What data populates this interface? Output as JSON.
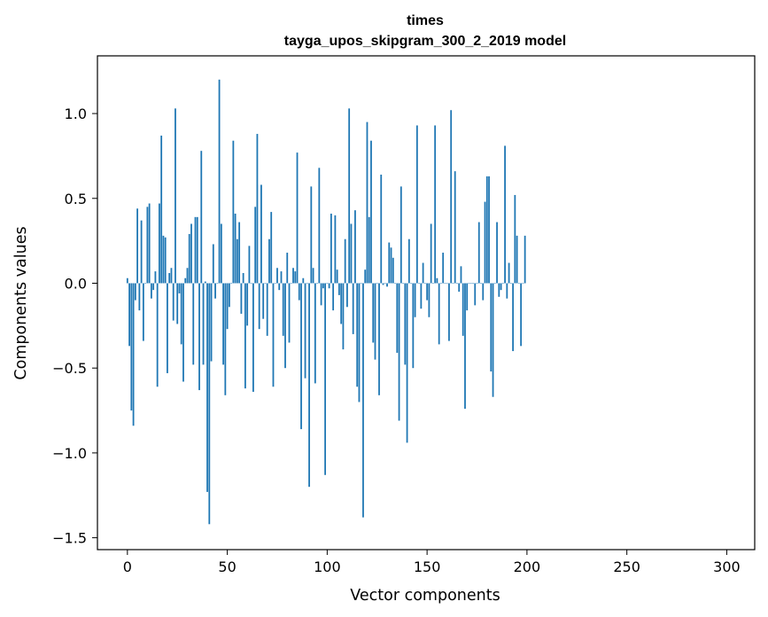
{
  "chart_data": {
    "type": "bar",
    "title": "times",
    "subtitle": "tayga_upos_skipgram_300_2_2019 model",
    "xlabel": "Vector components",
    "ylabel": "Components values",
    "xlim": [
      -15,
      314
    ],
    "ylim": [
      -1.57,
      1.34
    ],
    "xticks": [
      0,
      50,
      100,
      150,
      200,
      250,
      300
    ],
    "xtick_labels": [
      "0",
      "50",
      "100",
      "150",
      "200",
      "250",
      "300"
    ],
    "yticks": [
      -1.5,
      -1.0,
      -0.5,
      0.0,
      0.5,
      1.0
    ],
    "ytick_labels": [
      "−1.5",
      "−1.0",
      "−0.5",
      "0.0",
      "0.5",
      "1.0"
    ],
    "bar_color": "#1f77b4",
    "grid": false,
    "series": [
      {
        "values": [
          0.03,
          -0.37,
          -0.75,
          -0.84,
          -0.1,
          0.44,
          -0.16,
          0.37,
          -0.34,
          0.0,
          0.45,
          0.47,
          -0.09,
          -0.04,
          0.07,
          -0.61,
          0.47,
          0.87,
          0.28,
          0.27,
          -0.53,
          0.06,
          0.09,
          -0.22,
          1.03,
          -0.24,
          -0.06,
          -0.36,
          -0.58,
          0.03,
          0.09,
          0.29,
          0.35,
          -0.48,
          0.39,
          0.39,
          -0.63,
          0.78,
          -0.48,
          0.01,
          -1.23,
          -1.42,
          -0.46,
          0.23,
          -0.09,
          0.0,
          1.2,
          0.35,
          -0.48,
          -0.66,
          -0.27,
          -0.14,
          0.0,
          0.84,
          0.41,
          0.26,
          0.36,
          -0.18,
          0.06,
          -0.62,
          -0.25,
          0.22,
          0.0,
          -0.64,
          0.45,
          0.88,
          -0.27,
          0.58,
          -0.21,
          0.0,
          -0.31,
          0.26,
          0.42,
          -0.61,
          0.0,
          0.09,
          -0.04,
          0.07,
          -0.31,
          -0.5,
          0.18,
          -0.35,
          0.0,
          0.09,
          0.07,
          0.77,
          -0.1,
          -0.86,
          0.03,
          -0.56,
          0.0,
          -1.2,
          0.57,
          0.09,
          -0.59,
          0.0,
          0.68,
          -0.13,
          -0.03,
          -1.13,
          0.0,
          -0.03,
          0.41,
          -0.16,
          0.4,
          0.08,
          -0.07,
          -0.24,
          -0.39,
          0.26,
          -0.14,
          1.03,
          0.35,
          -0.3,
          0.43,
          -0.61,
          -0.7,
          0.0,
          -1.38,
          0.08,
          0.95,
          0.39,
          0.84,
          -0.35,
          -0.45,
          0.0,
          -0.66,
          0.64,
          -0.01,
          0.0,
          -0.02,
          0.24,
          0.21,
          0.15,
          0.0,
          -0.41,
          -0.81,
          0.57,
          0.0,
          -0.48,
          -0.94,
          0.26,
          0.0,
          -0.5,
          -0.2,
          0.93,
          0.0,
          -0.15,
          0.12,
          0.0,
          -0.1,
          -0.2,
          0.35,
          0.0,
          0.93,
          0.03,
          -0.36,
          0.0,
          0.18,
          0.0,
          0.0,
          -0.34,
          1.02,
          0.0,
          0.66,
          0.0,
          -0.05,
          0.1,
          -0.31,
          -0.74,
          -0.16,
          0.0,
          0.0,
          0.0,
          -0.13,
          0.0,
          0.36,
          0.0,
          -0.1,
          0.48,
          0.63,
          0.63,
          -0.52,
          -0.67,
          0.0,
          0.36,
          -0.08,
          -0.04,
          0.0,
          0.81,
          -0.09,
          0.12,
          0.0,
          -0.4,
          0.52,
          0.28,
          0.0,
          -0.37,
          0.0,
          0.28
        ]
      }
    ]
  }
}
